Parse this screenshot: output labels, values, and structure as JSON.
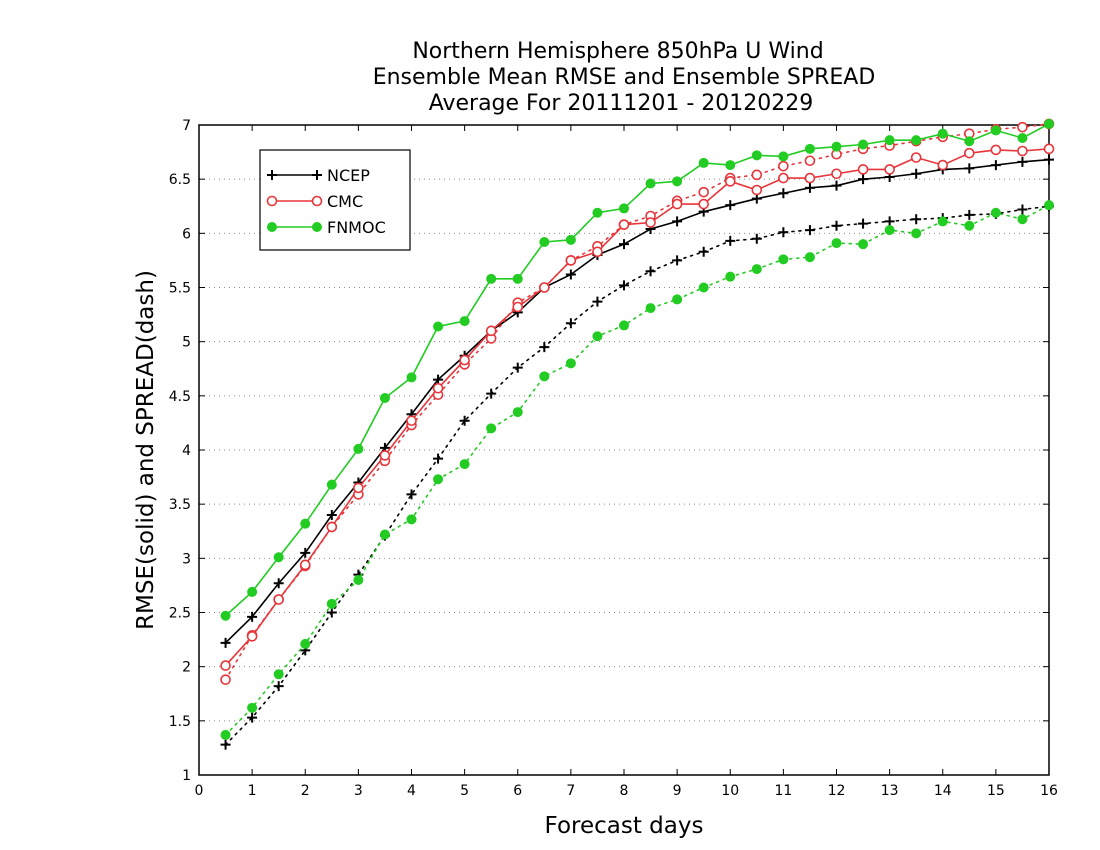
{
  "chart_data": {
    "type": "line",
    "title_lines": [
      "Northern Hemisphere 850hPa U Wind",
      "Ensemble Mean RMSE and Ensemble SPREAD",
      "Average For 20111201 - 20120229"
    ],
    "xlabel": "Forecast days",
    "ylabel": "RMSE(solid) and SPREAD(dash)",
    "xlim": [
      0,
      16
    ],
    "ylim": [
      1,
      7
    ],
    "xticks": [
      "0",
      "1",
      "2",
      "3",
      "4",
      "5",
      "6",
      "7",
      "8",
      "9",
      "10",
      "11",
      "12",
      "13",
      "14",
      "15",
      "16"
    ],
    "yticks": [
      "1",
      "1.5",
      "2",
      "2.5",
      "3",
      "3.5",
      "4",
      "4.5",
      "5",
      "5.5",
      "6",
      "6.5",
      "7"
    ],
    "grid": "horizontal-dotted",
    "legend_position": "upper-left",
    "x": [
      0.5,
      1,
      1.5,
      2,
      2.5,
      3,
      3.5,
      4,
      4.5,
      5,
      5.5,
      6,
      6.5,
      7,
      7.5,
      8,
      8.5,
      9,
      9.5,
      10,
      10.5,
      11,
      11.5,
      12,
      12.5,
      13,
      13.5,
      14,
      14.5,
      15,
      15.5,
      16
    ],
    "series": [
      {
        "name": "NCEP",
        "color": "#000000",
        "marker": "plus",
        "rmse": [
          2.22,
          2.46,
          2.77,
          3.05,
          3.4,
          3.7,
          4.02,
          4.33,
          4.65,
          4.87,
          5.1,
          5.27,
          5.5,
          5.62,
          5.8,
          5.9,
          6.04,
          6.11,
          6.2,
          6.26,
          6.32,
          6.37,
          6.42,
          6.44,
          6.5,
          6.52,
          6.55,
          6.59,
          6.6,
          6.63,
          6.66,
          6.68
        ],
        "spread": [
          1.28,
          1.53,
          1.82,
          2.15,
          2.5,
          2.85,
          3.21,
          3.59,
          3.92,
          4.27,
          4.52,
          4.76,
          4.95,
          5.17,
          5.37,
          5.52,
          5.65,
          5.75,
          5.83,
          5.93,
          5.95,
          6.01,
          6.03,
          6.07,
          6.09,
          6.11,
          6.13,
          6.14,
          6.17,
          6.18,
          6.22,
          6.25
        ]
      },
      {
        "name": "CMC",
        "color": "#e8353a",
        "marker": "open-circle",
        "rmse": [
          2.01,
          2.28,
          2.62,
          2.94,
          3.29,
          3.65,
          3.95,
          4.27,
          4.57,
          4.83,
          5.1,
          5.32,
          5.5,
          5.75,
          5.83,
          6.08,
          6.1,
          6.27,
          6.27,
          6.48,
          6.4,
          6.51,
          6.51,
          6.55,
          6.59,
          6.59,
          6.7,
          6.63,
          6.74,
          6.77,
          6.76,
          6.78
        ],
        "spread": [
          1.88,
          2.29,
          2.62,
          2.93,
          3.29,
          3.59,
          3.9,
          4.23,
          4.51,
          4.79,
          5.03,
          5.36,
          5.5,
          5.75,
          5.88,
          6.08,
          6.16,
          6.3,
          6.38,
          6.51,
          6.54,
          6.62,
          6.67,
          6.73,
          6.78,
          6.81,
          6.85,
          6.89,
          6.92,
          6.96,
          6.98,
          7.01
        ]
      },
      {
        "name": "FNMOC",
        "color": "#22cc22",
        "marker": "filled-circle",
        "rmse": [
          2.47,
          2.69,
          3.01,
          3.32,
          3.68,
          4.01,
          4.48,
          4.67,
          5.14,
          5.19,
          5.58,
          5.58,
          5.92,
          5.94,
          6.19,
          6.23,
          6.46,
          6.48,
          6.65,
          6.63,
          6.72,
          6.71,
          6.78,
          6.8,
          6.82,
          6.86,
          6.86,
          6.92,
          6.85,
          6.95,
          6.88,
          7.01
        ],
        "spread": [
          1.37,
          1.62,
          1.93,
          2.21,
          2.58,
          2.8,
          3.22,
          3.36,
          3.73,
          3.87,
          4.2,
          4.35,
          4.68,
          4.8,
          5.05,
          5.15,
          5.31,
          5.39,
          5.5,
          5.6,
          5.67,
          5.76,
          5.78,
          5.91,
          5.9,
          6.03,
          6.0,
          6.11,
          6.07,
          6.19,
          6.13,
          6.26
        ]
      }
    ]
  }
}
